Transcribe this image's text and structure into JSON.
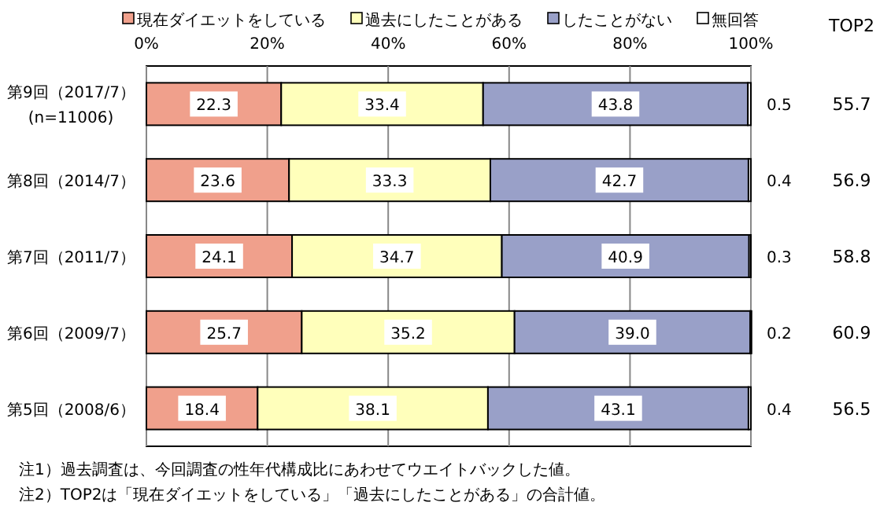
{
  "chart_data": {
    "type": "bar",
    "orientation": "horizontal",
    "stacked": true,
    "categories": [
      "第9回（2017/7）\n(n=11006)",
      "第8回（2014/7）",
      "第7回（2011/7）",
      "第6回（2009/7）",
      "第5回（2008/6）"
    ],
    "series": [
      {
        "name": "現在ダイエットをしている",
        "color": "#f0a08c",
        "values": [
          22.3,
          23.6,
          24.1,
          25.7,
          18.4
        ],
        "value_labels": [
          "22.3",
          "23.6",
          "24.1",
          "25.7",
          "18.4"
        ]
      },
      {
        "name": "過去にしたことがある",
        "color": "#ffffbb",
        "values": [
          33.4,
          33.3,
          34.7,
          35.2,
          38.1
        ],
        "value_labels": [
          "33.4",
          "33.3",
          "34.7",
          "35.2",
          "38.1"
        ]
      },
      {
        "name": "したことがない",
        "color": "#99a0c8",
        "values": [
          43.8,
          42.7,
          40.9,
          39.0,
          43.1
        ],
        "value_labels": [
          "43.8",
          "42.7",
          "40.9",
          "39.0",
          "43.1"
        ]
      },
      {
        "name": "無回答",
        "color": "#ffffff",
        "values": [
          0.5,
          0.4,
          0.3,
          0.2,
          0.4
        ],
        "value_labels": [
          "0.5",
          "0.4",
          "0.3",
          "0.2",
          "0.4"
        ]
      }
    ],
    "xlim": [
      0,
      100
    ],
    "xticks": [
      {
        "value": 0,
        "label": "0%"
      },
      {
        "value": 20,
        "label": "20%"
      },
      {
        "value": 40,
        "label": "40%"
      },
      {
        "value": 60,
        "label": "60%"
      },
      {
        "value": 80,
        "label": "80%"
      },
      {
        "value": 100,
        "label": "100%"
      }
    ],
    "grid": "x",
    "legend": "top",
    "annotations": [
      "TOP2",
      "55.7",
      "56.9",
      "58.8",
      "60.9",
      "56.5",
      "注1）過去調査は、今回調査の性年代構成比にあわせてウエイトバックした値。",
      "注2）TOP2は「現在ダイエットをしている」「過去にしたことがある」の合計値。"
    ]
  }
}
